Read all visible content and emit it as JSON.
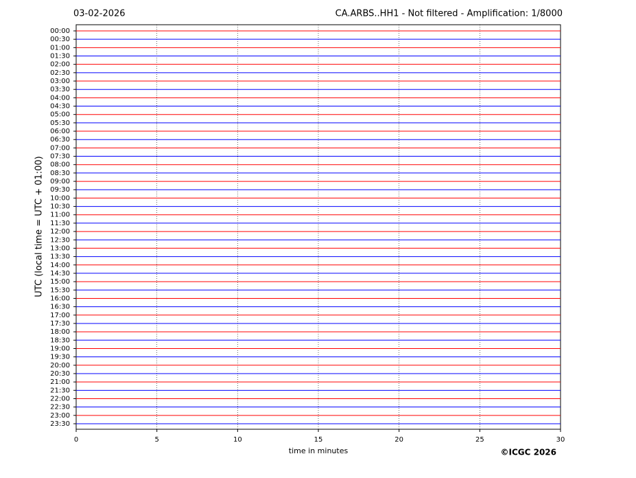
{
  "chart_data": {
    "type": "helicorder",
    "date": "03-02-2026",
    "title": "CA.ARBS..HH1 - Not filtered - Amplification: 1/8000",
    "xlabel": "time in minutes",
    "ylabel": "UTC (local time = UTC + 01:00)",
    "credit": "©ICGC 2026",
    "categories": [
      "00:00",
      "00:30",
      "01:00",
      "01:30",
      "02:00",
      "02:30",
      "03:00",
      "03:30",
      "04:00",
      "04:30",
      "05:00",
      "05:30",
      "06:00",
      "06:30",
      "07:00",
      "07:30",
      "08:00",
      "08:30",
      "09:00",
      "09:30",
      "10:00",
      "10:30",
      "11:00",
      "11:30",
      "12:00",
      "12:30",
      "13:00",
      "13:30",
      "14:00",
      "14:30",
      "15:00",
      "15:30",
      "16:00",
      "16:30",
      "17:00",
      "17:30",
      "18:00",
      "18:30",
      "19:00",
      "19:30",
      "20:00",
      "20:30",
      "21:00",
      "21:30",
      "22:00",
      "22:30",
      "23:00",
      "23:30"
    ],
    "colors": [
      "#ff0000",
      "#0000ff"
    ],
    "xlim": [
      0,
      30
    ],
    "xticks": [
      0,
      5,
      10,
      15,
      20,
      25,
      30
    ],
    "grid": true
  }
}
